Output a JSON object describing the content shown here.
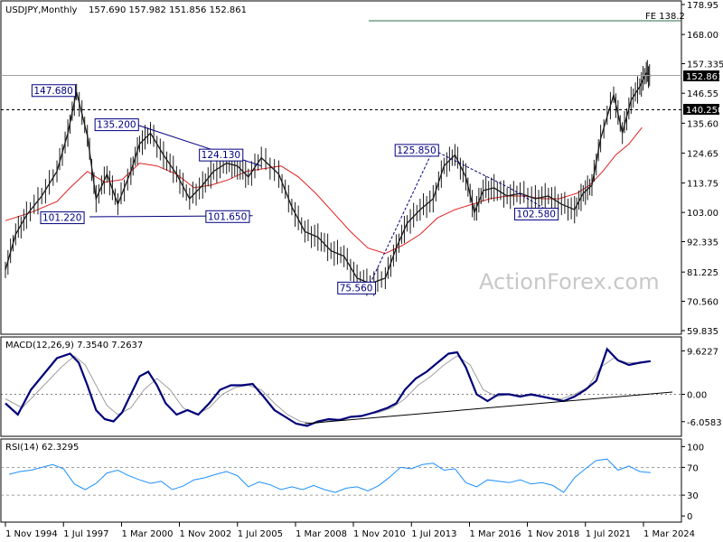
{
  "chart_data": [
    {
      "panel": "price",
      "type": "line",
      "title": "USDJPY,Monthly",
      "ohlc_label": "157.690 157.982 151.856 152.861",
      "x_ticks": [
        "1 Nov 1994",
        "1 Jul 1997",
        "1 Mar 2000",
        "1 Nov 2002",
        "1 Jul 2005",
        "1 Mar 2008",
        "1 Nov 2010",
        "1 Jul 2013",
        "1 Mar 2016",
        "1 Nov 2018",
        "1 Jul 2021",
        "1 Mar 2024"
      ],
      "y_ticks": [
        "178.95",
        "168.00",
        "157.335",
        "146.55",
        "135.60",
        "124.65",
        "113.75",
        "103.00",
        "92.335",
        "81.225",
        "70.560",
        "59.835"
      ],
      "ylim": [
        59.835,
        178.95
      ],
      "current_price": "152.861",
      "horizontal_level": "140.250",
      "fe_label": "FE 138.2",
      "watermark": "ActionForex.com",
      "price": {
        "x": [
          1994.83,
          1995.3,
          1995.8,
          1996.5,
          1997.2,
          1997.7,
          1998.1,
          1998.6,
          1999.0,
          1999.5,
          2000.0,
          2000.6,
          2001.0,
          2001.5,
          2002.1,
          2002.7,
          2003.3,
          2003.9,
          2004.4,
          2005.0,
          2005.5,
          2006.0,
          2006.6,
          2007.4,
          2008.0,
          2008.6,
          2009.2,
          2009.8,
          2010.4,
          2011.0,
          2011.6,
          2012.3,
          2012.8,
          2013.3,
          2013.9,
          2014.5,
          2015.0,
          2015.5,
          2016.0,
          2016.4,
          2016.8,
          2017.3,
          2017.9,
          2018.5,
          2019.2,
          2019.8,
          2020.4,
          2021.0,
          2021.4,
          2021.8,
          2022.2,
          2022.8,
          2023.2,
          2023.6,
          2024.0,
          2024.3,
          2024.5
        ],
        "y": [
          82,
          95,
          102,
          109,
          118,
          132,
          147,
          131,
          108,
          117,
          106,
          118,
          128,
          132,
          124,
          117,
          108,
          113,
          118,
          121,
          120,
          116,
          123,
          117,
          105,
          96,
          94,
          89,
          87,
          79,
          77,
          79,
          90,
          99,
          104,
          108,
          120,
          124,
          116,
          103,
          111,
          112,
          109,
          110,
          108,
          109,
          106,
          104,
          110,
          113,
          130,
          146,
          132,
          144,
          149,
          154,
          152.861
        ]
      },
      "moving_average": {
        "x": [
          1994.83,
          1996.0,
          1997.2,
          1997.8,
          1998.6,
          1999.4,
          2000.2,
          2001.0,
          2001.8,
          2002.7,
          2003.5,
          2004.3,
          2005.1,
          2005.9,
          2006.7,
          2007.5,
          2008.3,
          2009.1,
          2009.9,
          2010.7,
          2011.5,
          2012.3,
          2013.1,
          2013.9,
          2014.7,
          2015.5,
          2016.3,
          2017.1,
          2017.9,
          2018.7,
          2019.5,
          2020.3,
          2021.1,
          2021.7,
          2022.3,
          2022.9,
          2023.5,
          2024.1
        ],
        "y": [
          100,
          103,
          107,
          112,
          118,
          114,
          115,
          121,
          120,
          117,
          112,
          113,
          115,
          118,
          119,
          120,
          116,
          110,
          103,
          96,
          90,
          88,
          91,
          95,
          101,
          104,
          106,
          108,
          109,
          109,
          108,
          108,
          110,
          113,
          118,
          124,
          128,
          134
        ]
      },
      "annotations": [
        {
          "label": "147.680",
          "x": 1997.8,
          "y": 147.68
        },
        {
          "label": "135.200",
          "x": 2000.7,
          "y": 135.2
        },
        {
          "label": "124.130",
          "x": 2005.5,
          "y": 124.13
        },
        {
          "label": "101.220",
          "x": 1998.2,
          "y": 101.22
        },
        {
          "label": "101.650",
          "x": 2005.8,
          "y": 101.65
        },
        {
          "label": "75.560",
          "x": 2011.6,
          "y": 75.56
        },
        {
          "label": "125.850",
          "x": 2014.5,
          "y": 125.85
        },
        {
          "label": "102.580",
          "x": 2020.0,
          "y": 102.58
        }
      ],
      "trendlines": [
        {
          "style": "solid",
          "points": [
            [
              2000.8,
              135.2
            ],
            [
              2006.6,
              120.0
            ]
          ]
        },
        {
          "style": "solid",
          "points": [
            [
              1998.7,
              101.4
            ],
            [
              2006.2,
              101.8
            ]
          ]
        },
        {
          "style": "dashed",
          "points": [
            [
              2011.6,
              77.0
            ],
            [
              2014.5,
              125.85
            ],
            [
              2018.0,
              112.0
            ],
            [
              2020.0,
              102.6
            ]
          ]
        }
      ]
    },
    {
      "panel": "macd",
      "type": "line",
      "label": "MACD(12,26,9) 7.3540 7.2637",
      "y_ticks": [
        "9.6227",
        "0.00",
        "-6.0583"
      ],
      "ylim": [
        -7.9,
        11.3
      ],
      "macd": {
        "x": [
          1994.83,
          1995.4,
          1996.0,
          1996.6,
          1997.2,
          1997.8,
          1998.2,
          1998.6,
          1999.0,
          1999.4,
          1999.8,
          2000.2,
          2000.6,
          2001.0,
          2001.4,
          2001.8,
          2002.2,
          2002.7,
          2003.2,
          2003.7,
          2004.2,
          2004.7,
          2005.2,
          2005.7,
          2006.2,
          2006.7,
          2007.2,
          2007.7,
          2008.2,
          2008.7,
          2009.2,
          2009.7,
          2010.2,
          2010.7,
          2011.2,
          2011.8,
          2012.4,
          2012.8,
          2013.2,
          2013.7,
          2014.2,
          2014.7,
          2015.2,
          2015.6,
          2016.0,
          2016.5,
          2017.0,
          2017.5,
          2018.0,
          2018.5,
          2019.0,
          2019.5,
          2020.0,
          2020.5,
          2021.0,
          2021.5,
          2022.0,
          2022.5,
          2023.0,
          2023.5,
          2024.0,
          2024.5
        ],
        "y": [
          -2,
          -4.5,
          1,
          4.5,
          8,
          9,
          7,
          2,
          -3.5,
          -5.5,
          -6,
          -4,
          0,
          4,
          5,
          2,
          -2,
          -4.5,
          -3.5,
          -4.5,
          -2,
          1,
          2,
          2,
          2.3,
          -0.5,
          -3.5,
          -5,
          -6.5,
          -7,
          -6,
          -5.5,
          -5.7,
          -5,
          -4.8,
          -4,
          -3,
          -2,
          1,
          3.5,
          5,
          7,
          9,
          9.3,
          6,
          0,
          -1.5,
          0,
          0,
          -0.5,
          0,
          -0.5,
          -1,
          -1.5,
          -0.5,
          1,
          3,
          10,
          7.5,
          6.5,
          7,
          7.35
        ]
      },
      "signal": {
        "x": [
          1994.83,
          1995.6,
          1996.2,
          1996.8,
          1997.4,
          1998.0,
          1998.5,
          1999.0,
          1999.5,
          2000.0,
          2000.6,
          2001.2,
          2001.8,
          2002.4,
          2003.0,
          2003.6,
          2004.2,
          2004.8,
          2005.4,
          2006.0,
          2006.6,
          2007.2,
          2007.8,
          2008.4,
          2009.0,
          2009.6,
          2010.2,
          2010.8,
          2011.4,
          2012.0,
          2012.6,
          2013.2,
          2013.8,
          2014.4,
          2015.0,
          2015.6,
          2016.2,
          2016.8,
          2017.4,
          2018.0,
          2018.6,
          2019.2,
          2019.8,
          2020.4,
          2021.0,
          2021.6,
          2022.2,
          2022.8,
          2023.4,
          2024.0,
          2024.5
        ],
        "y": [
          -1,
          -3,
          0,
          3,
          6,
          8.5,
          6.5,
          2,
          -2.5,
          -4.5,
          -3,
          1,
          3.5,
          1,
          -3,
          -4.5,
          -3,
          0,
          1.5,
          2,
          1,
          -2,
          -4.5,
          -6,
          -6.5,
          -6,
          -5.5,
          -5,
          -4.5,
          -4,
          -3,
          -1,
          2,
          4,
          6.5,
          8.5,
          6.5,
          1,
          -0.5,
          0,
          -0.3,
          -0.3,
          -0.8,
          -1,
          0,
          1.5,
          6,
          8,
          7,
          7,
          7.26
        ]
      },
      "trendline": {
        "style": "solid",
        "points": [
          [
            2008.6,
            -6.5
          ],
          [
            2025.5,
            0.5
          ]
        ]
      }
    },
    {
      "panel": "rsi",
      "type": "line",
      "label": "RSI(14) 62.3295",
      "y_ticks": [
        "100",
        "70",
        "30",
        "0"
      ],
      "ylim": [
        -5,
        107
      ],
      "levels": [
        70,
        30
      ],
      "rsi": {
        "x": [
          1995.0,
          1995.5,
          1996.0,
          1996.5,
          1997.0,
          1997.5,
          1998.0,
          1998.5,
          1999.0,
          1999.5,
          2000.0,
          2000.5,
          2001.0,
          2001.5,
          2002.0,
          2002.5,
          2003.0,
          2003.5,
          2004.0,
          2004.5,
          2005.0,
          2005.5,
          2006.0,
          2006.5,
          2007.0,
          2007.5,
          2008.0,
          2008.5,
          2009.0,
          2009.5,
          2010.0,
          2010.5,
          2011.0,
          2011.5,
          2012.0,
          2012.5,
          2013.0,
          2013.5,
          2014.0,
          2014.5,
          2015.0,
          2015.5,
          2016.0,
          2016.5,
          2017.0,
          2017.5,
          2018.0,
          2018.5,
          2019.0,
          2019.5,
          2020.0,
          2020.5,
          2021.0,
          2021.5,
          2022.0,
          2022.5,
          2023.0,
          2023.5,
          2024.0,
          2024.5
        ],
        "y": [
          60,
          64,
          66,
          70,
          74,
          68,
          46,
          38,
          47,
          62,
          66,
          58,
          52,
          47,
          50,
          38,
          43,
          52,
          55,
          60,
          64,
          58,
          42,
          49,
          45,
          38,
          42,
          38,
          44,
          38,
          34,
          40,
          42,
          36,
          44,
          56,
          70,
          68,
          74,
          76,
          66,
          68,
          48,
          42,
          52,
          50,
          48,
          52,
          46,
          48,
          44,
          34,
          55,
          68,
          80,
          82,
          66,
          72,
          64,
          62.33
        ]
      }
    }
  ]
}
